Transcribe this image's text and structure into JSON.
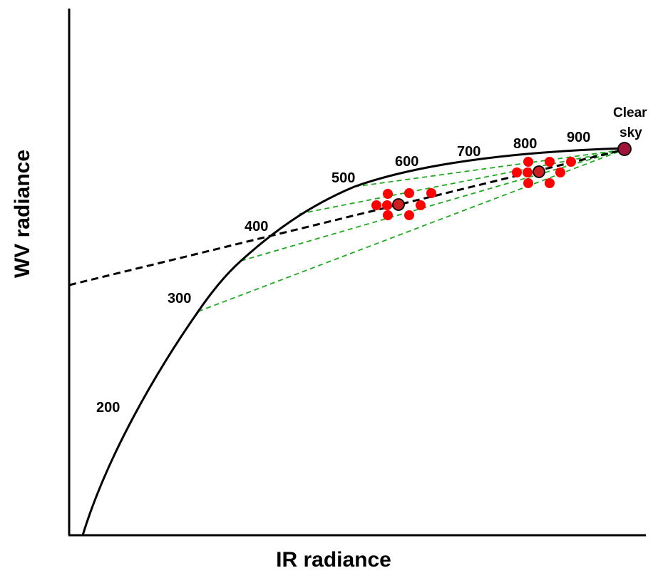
{
  "axes": {
    "x_label": "IR radiance",
    "y_label": "WV radiance"
  },
  "curve_labels": [
    "200",
    "300",
    "400",
    "500",
    "600",
    "700",
    "800",
    "900"
  ],
  "clear_sky": {
    "line1": "Clear",
    "line2": "sky"
  },
  "colors": {
    "curve": "#000000",
    "pixel_points": "#ff0000",
    "cluster_centroid": "#cc2020",
    "clear_sky_point": "#a0143c",
    "green_lines": "#1faa1f",
    "black_dashed": "#000000"
  }
}
